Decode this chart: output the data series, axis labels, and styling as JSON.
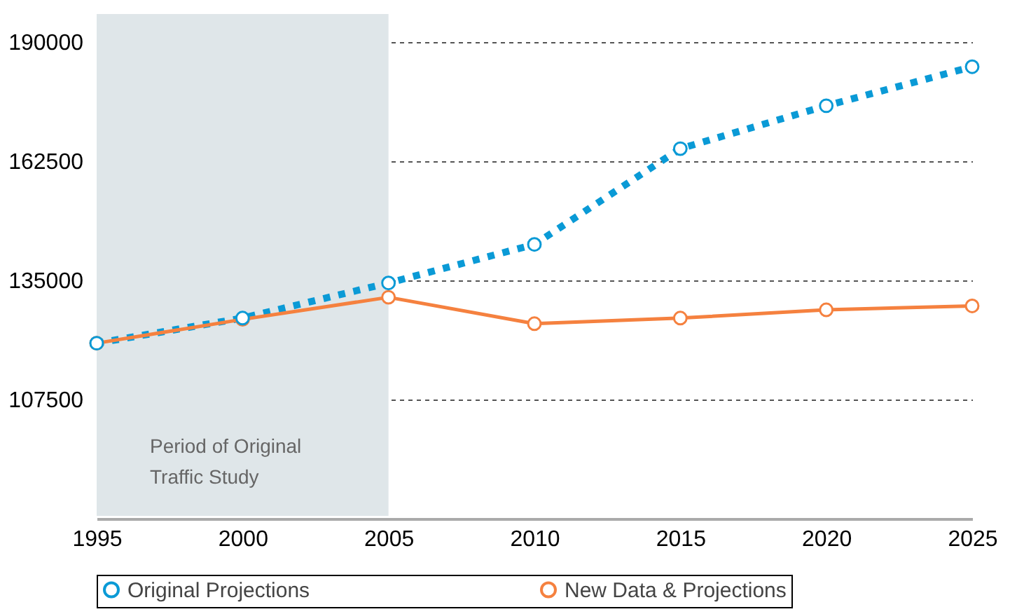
{
  "chart_data": {
    "type": "line",
    "x": [
      1995,
      2000,
      2005,
      2010,
      2015,
      2020,
      2025
    ],
    "series": [
      {
        "name": "Original Projections",
        "color": "#0a9ad6",
        "line_style": "dotted",
        "values": [
          120500,
          126300,
          134400,
          143300,
          165400,
          175300,
          184300
        ]
      },
      {
        "name": "New Data & Projections",
        "color": "#f5813f",
        "line_style": "solid",
        "values": [
          120500,
          126000,
          131100,
          125000,
          126300,
          128200,
          129100
        ]
      }
    ],
    "xlim": [
      1995,
      2025
    ],
    "xticks": [
      1995,
      2000,
      2005,
      2010,
      2015,
      2020,
      2025
    ],
    "ylim": [
      80000,
      190000
    ],
    "yticks": [
      107500,
      135000,
      162500,
      190000
    ],
    "bands": [
      {
        "axis": "x",
        "from": 1995,
        "to": 2005,
        "label": "Period of Original\nTraffic Study",
        "color": "#dfe6e9"
      }
    ],
    "grid": "y",
    "marker": "circle",
    "legend": "bottom"
  }
}
